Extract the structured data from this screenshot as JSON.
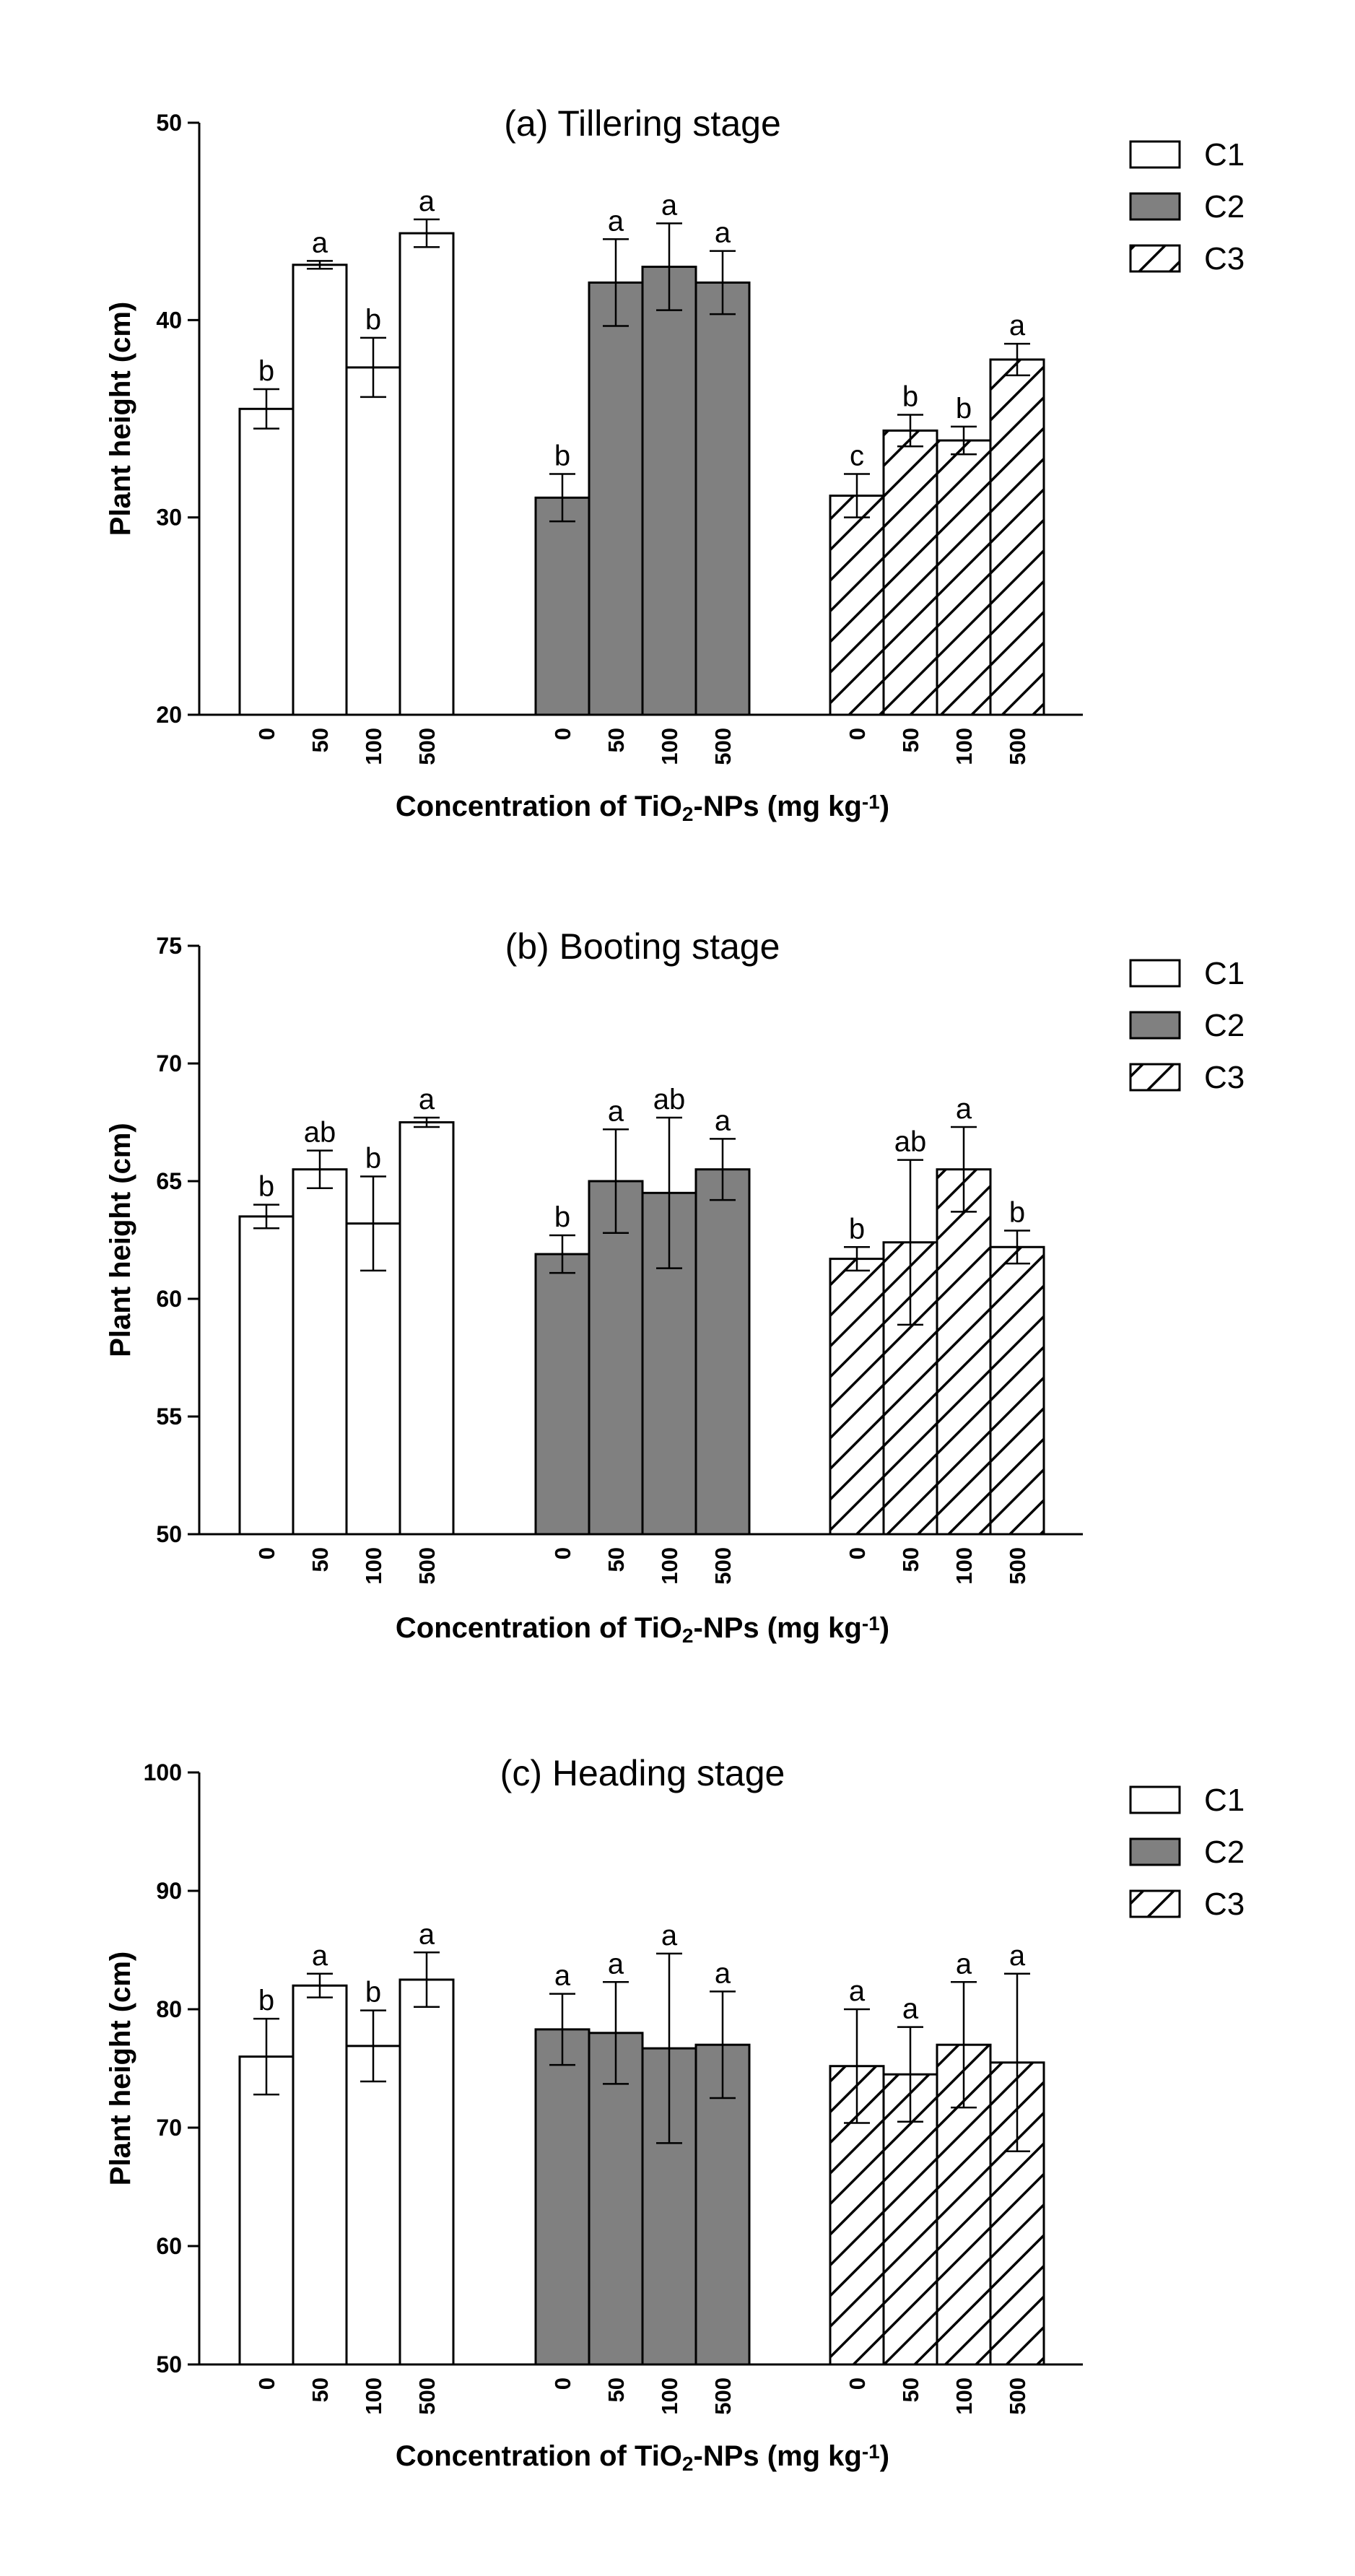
{
  "chart_data": [
    {
      "type": "bar",
      "title": "(a) Tillering stage",
      "ylabel": "Plant height (cm)",
      "xlabel": {
        "prefix": "Concentration of TiO",
        "sub": "2",
        "middle": "-NPs (mg kg",
        "sup": "-1",
        "suffix": ")"
      },
      "ylim": [
        20,
        50
      ],
      "yticks": [
        20,
        30,
        40,
        50
      ],
      "categories": [
        "0",
        "50",
        "100",
        "500"
      ],
      "series": [
        {
          "name": "C1",
          "values": [
            35.5,
            42.8,
            37.6,
            44.4
          ],
          "errors": [
            1.0,
            0.2,
            1.5,
            0.7
          ],
          "letters": [
            "b",
            "a",
            "b",
            "a"
          ]
        },
        {
          "name": "C2",
          "values": [
            31.0,
            41.9,
            42.7,
            41.9
          ],
          "errors": [
            1.2,
            2.2,
            2.2,
            1.6
          ],
          "letters": [
            "b",
            "a",
            "a",
            "a"
          ]
        },
        {
          "name": "C3",
          "values": [
            31.1,
            34.4,
            33.9,
            38.0
          ],
          "errors": [
            1.1,
            0.8,
            0.7,
            0.8
          ],
          "letters": [
            "c",
            "b",
            "b",
            "a"
          ]
        }
      ]
    },
    {
      "type": "bar",
      "title": "(b) Booting stage",
      "ylabel": "Plant height (cm)",
      "xlabel": {
        "prefix": "Concentration of TiO",
        "sub": "2",
        "middle": "-NPs (mg kg",
        "sup": "-1",
        "suffix": ")"
      },
      "ylim": [
        50,
        75
      ],
      "yticks": [
        50,
        55,
        60,
        65,
        70,
        75
      ],
      "categories": [
        "0",
        "50",
        "100",
        "500"
      ],
      "series": [
        {
          "name": "C1",
          "values": [
            63.5,
            65.5,
            63.2,
            67.5
          ],
          "errors": [
            0.5,
            0.8,
            2.0,
            0.2
          ],
          "letters": [
            "b",
            "ab",
            "b",
            "a"
          ]
        },
        {
          "name": "C2",
          "values": [
            61.9,
            65.0,
            64.5,
            65.5
          ],
          "errors": [
            0.8,
            2.2,
            3.2,
            1.3
          ],
          "letters": [
            "b",
            "a",
            "ab",
            "a"
          ]
        },
        {
          "name": "C3",
          "values": [
            61.7,
            62.4,
            65.5,
            62.2
          ],
          "errors": [
            0.5,
            3.5,
            1.8,
            0.7
          ],
          "letters": [
            "b",
            "ab",
            "a",
            "b"
          ]
        }
      ]
    },
    {
      "type": "bar",
      "title": "(c) Heading stage",
      "ylabel": "Plant height (cm)",
      "xlabel": {
        "prefix": "Concentration of TiO",
        "sub": "2",
        "middle": "-NPs (mg kg",
        "sup": "-1",
        "suffix": ")"
      },
      "ylim": [
        50,
        100
      ],
      "yticks": [
        50,
        60,
        70,
        80,
        90,
        100
      ],
      "categories": [
        "0",
        "50",
        "100",
        "500"
      ],
      "series": [
        {
          "name": "C1",
          "values": [
            76.0,
            82.0,
            76.9,
            82.5
          ],
          "errors": [
            3.2,
            1.0,
            3.0,
            2.3
          ],
          "letters": [
            "b",
            "a",
            "b",
            "a"
          ]
        },
        {
          "name": "C2",
          "values": [
            78.3,
            78.0,
            76.7,
            77.0
          ],
          "errors": [
            3.0,
            4.3,
            8.0,
            4.5
          ],
          "letters": [
            "a",
            "a",
            "a",
            "a"
          ]
        },
        {
          "name": "C3",
          "values": [
            75.2,
            74.5,
            77.0,
            75.5
          ],
          "errors": [
            4.8,
            4.0,
            5.3,
            7.5
          ],
          "letters": [
            "a",
            "a",
            "a",
            "a"
          ]
        }
      ]
    }
  ],
  "colors": {
    "C1": "#ffffff",
    "C2": "#808080",
    "C3": "#ffffff",
    "stroke": "#000000"
  }
}
